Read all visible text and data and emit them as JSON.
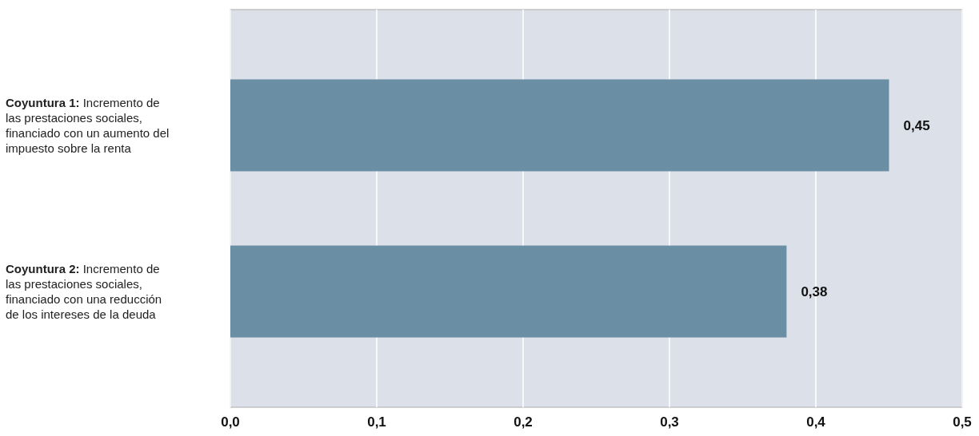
{
  "chart_data": {
    "type": "bar",
    "orientation": "horizontal",
    "categories": [
      "Coyuntura 1: Incremento de las prestaciones sociales, financiado con un aumento del impuesto sobre la renta",
      "Coyuntura 2: Incremento de las prestaciones sociales, financiado con una reducción de los intereses de la deuda"
    ],
    "values": [
      0.45,
      0.38
    ],
    "color": "#6a8fa5",
    "xlim": [
      0,
      0.5
    ],
    "xticks": [
      {
        "value": 0,
        "label": "0,0"
      },
      {
        "value": 0.1,
        "label": "0,1"
      },
      {
        "value": 0.2,
        "label": "0,2"
      },
      {
        "value": 0.3,
        "label": "0,3"
      },
      {
        "value": 0.4,
        "label": "0,4"
      },
      {
        "value": 0.5,
        "label": "0,5"
      }
    ],
    "grid": "x",
    "value_labels": [
      "0,45",
      "0,38"
    ]
  }
}
